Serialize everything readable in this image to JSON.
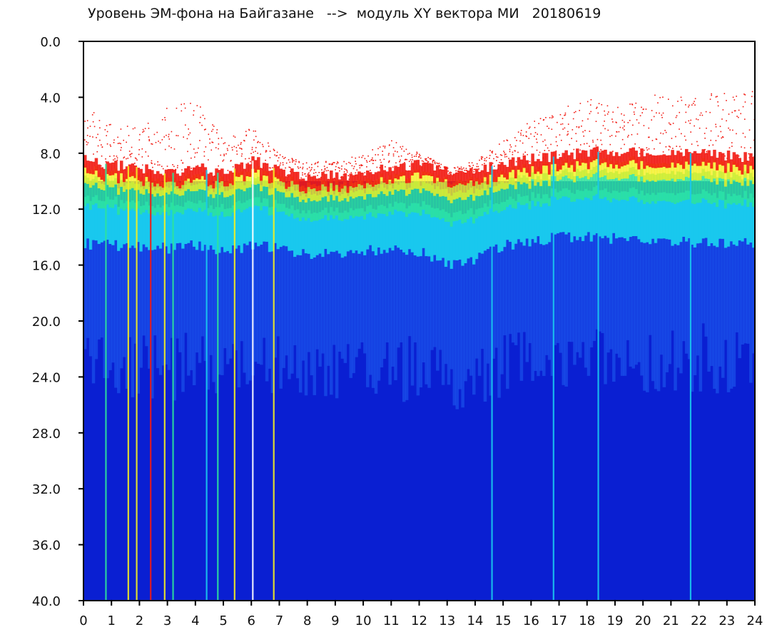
{
  "chart_data": {
    "type": "heatmap",
    "title": "Уровень ЭМ-фона на Байгазане   -->  модуль XY вектора МИ   20180619",
    "xlabel": "",
    "ylabel": "",
    "xlim": [
      0,
      24
    ],
    "ylim": [
      0.0,
      40.0
    ],
    "y_inverted": true,
    "grid": false,
    "x_ticks": [
      "0",
      "1",
      "2",
      "3",
      "4",
      "5",
      "6",
      "7",
      "8",
      "9",
      "10",
      "11",
      "12",
      "13",
      "14",
      "15",
      "16",
      "17",
      "18",
      "19",
      "20",
      "21",
      "22",
      "23",
      "24"
    ],
    "y_ticks": [
      "0.0",
      "4.0",
      "8.0",
      "12.0",
      "16.0",
      "20.0",
      "24.0",
      "28.0",
      "32.0",
      "36.0",
      "40.0"
    ],
    "colormap": [
      "#0a1fd2",
      "#1f5ef0",
      "#19c8ee",
      "#2ee39a",
      "#f4f020",
      "#f21a12"
    ],
    "background_color": "#0a1fd2",
    "upper_envelope": {
      "hours": [
        0,
        0.5,
        1,
        2,
        3,
        4,
        5,
        6,
        7,
        8,
        9,
        10,
        11,
        12,
        13,
        14,
        15,
        16,
        17,
        18,
        19,
        20,
        21,
        22,
        23,
        24
      ],
      "red_level": [
        8.5,
        8.7,
        8.8,
        9.0,
        9.5,
        9.0,
        9.5,
        8.5,
        9.2,
        9.8,
        9.6,
        9.7,
        8.9,
        8.8,
        9.3,
        9.2,
        8.7,
        8.4,
        8.2,
        7.9,
        7.9,
        7.9,
        8.0,
        8.0,
        8.2,
        8.3
      ],
      "cyan_level": [
        14.5,
        14.5,
        14.6,
        14.7,
        14.8,
        14.5,
        15.0,
        14.6,
        14.8,
        15.3,
        15.2,
        15.0,
        14.9,
        15.0,
        16.0,
        15.6,
        14.6,
        14.3,
        14.0,
        14.0,
        14.1,
        14.2,
        14.3,
        14.4,
        14.4,
        14.5
      ],
      "sparse_top": [
        5.0,
        5.0,
        6.0,
        6.0,
        4.5,
        4.0,
        7.0,
        6.0,
        8.0,
        8.5,
        8.5,
        8.0,
        7.0,
        8.0,
        9.0,
        8.5,
        7.0,
        5.5,
        4.8,
        4.0,
        3.8,
        3.8,
        3.8,
        3.8,
        3.6,
        3.5
      ]
    },
    "vertical_streaks": [
      {
        "hour": 0.8,
        "color": "#2ee39a"
      },
      {
        "hour": 1.6,
        "color": "#f4f020"
      },
      {
        "hour": 1.9,
        "color": "#f4f020"
      },
      {
        "hour": 2.4,
        "color": "#f21a12"
      },
      {
        "hour": 2.9,
        "color": "#f4f020"
      },
      {
        "hour": 3.2,
        "color": "#2ee39a"
      },
      {
        "hour": 4.4,
        "color": "#19c8ee"
      },
      {
        "hour": 4.8,
        "color": "#2ee39a"
      },
      {
        "hour": 5.4,
        "color": "#f4f020"
      },
      {
        "hour": 6.05,
        "color": "#ffffff"
      },
      {
        "hour": 6.8,
        "color": "#f4f020"
      },
      {
        "hour": 14.6,
        "color": "#19c8ee"
      },
      {
        "hour": 16.8,
        "color": "#19c8ee"
      },
      {
        "hour": 18.4,
        "color": "#19c8ee"
      },
      {
        "hour": 21.7,
        "color": "#19c8ee"
      }
    ]
  }
}
